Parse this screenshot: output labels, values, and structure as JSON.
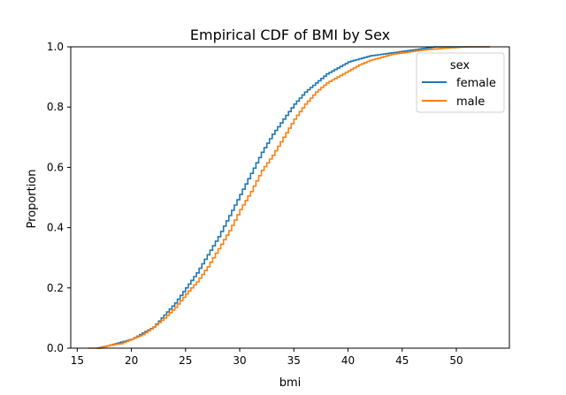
{
  "chart_data": {
    "type": "line",
    "title": "Empirical CDF of BMI by Sex",
    "xlabel": "bmi",
    "ylabel": "Proportion",
    "xlim": [
      14.4,
      54.9
    ],
    "ylim": [
      0,
      1
    ],
    "xticks": [
      15,
      20,
      25,
      30,
      35,
      40,
      45,
      50
    ],
    "xtick_labels": [
      "15",
      "20",
      "25",
      "30",
      "35",
      "40",
      "45",
      "50"
    ],
    "yticks": [
      0,
      0.2,
      0.4,
      0.6,
      0.8,
      1.0
    ],
    "ytick_labels": [
      "0.0",
      "0.2",
      "0.4",
      "0.6",
      "0.8",
      "1.0"
    ],
    "grid": false,
    "legend": {
      "title": "sex",
      "placement": "upper right"
    },
    "series": [
      {
        "name": "female",
        "color": "#1f77b4",
        "x": [
          16.8,
          18.0,
          19.0,
          20.0,
          21.0,
          22.0,
          23.0,
          24.0,
          25.0,
          26.0,
          27.0,
          28.0,
          29.0,
          30.0,
          31.0,
          32.0,
          33.0,
          34.0,
          35.0,
          36.0,
          37.0,
          38.0,
          39.0,
          40.0,
          41.0,
          42.0,
          43.0,
          44.0,
          45.0,
          46.0,
          47.0,
          48.0,
          53.1
        ],
        "y": [
          0.0,
          0.01,
          0.02,
          0.03,
          0.05,
          0.07,
          0.11,
          0.15,
          0.2,
          0.25,
          0.31,
          0.37,
          0.44,
          0.51,
          0.58,
          0.65,
          0.71,
          0.76,
          0.81,
          0.85,
          0.88,
          0.91,
          0.93,
          0.95,
          0.96,
          0.97,
          0.975,
          0.98,
          0.985,
          0.99,
          0.995,
          1.0,
          1.0
        ]
      },
      {
        "name": "male",
        "color": "#ff7f0e",
        "x": [
          16.0,
          17.0,
          18.0,
          19.0,
          20.0,
          21.0,
          22.0,
          23.0,
          24.0,
          25.0,
          26.0,
          27.0,
          28.0,
          29.0,
          30.0,
          31.0,
          32.0,
          33.0,
          34.0,
          35.0,
          36.0,
          37.0,
          38.0,
          39.0,
          40.0,
          41.0,
          42.0,
          43.0,
          44.0,
          45.0,
          46.0,
          47.0,
          48.0,
          49.0,
          50.0,
          51.0,
          53.1
        ],
        "y": [
          0.0,
          0.0,
          0.01,
          0.015,
          0.03,
          0.045,
          0.07,
          0.1,
          0.135,
          0.18,
          0.22,
          0.27,
          0.33,
          0.39,
          0.46,
          0.52,
          0.59,
          0.64,
          0.7,
          0.76,
          0.81,
          0.85,
          0.88,
          0.9,
          0.92,
          0.94,
          0.955,
          0.965,
          0.975,
          0.98,
          0.985,
          0.99,
          0.993,
          0.996,
          0.998,
          1.0,
          1.0
        ]
      }
    ]
  }
}
